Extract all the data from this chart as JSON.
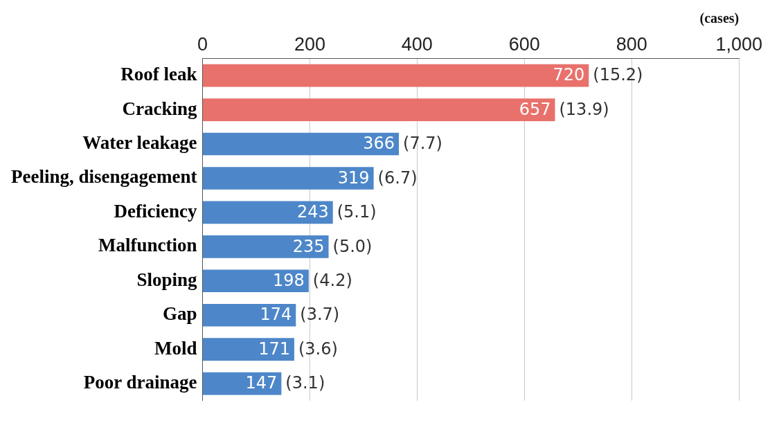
{
  "chart_data": {
    "type": "bar",
    "orientation": "horizontal",
    "xlabel": "(cases)",
    "categories": [
      "Roof leak",
      "Cracking",
      "Water leakage",
      "Peeling, disengagement",
      "Deficiency",
      "Malfunction",
      "Sloping",
      "Gap",
      "Mold",
      "Poor drainage"
    ],
    "values": [
      720,
      657,
      366,
      319,
      243,
      235,
      198,
      174,
      171,
      147
    ],
    "colors": [
      "#e8716b",
      "#e8716b",
      "#4d87c9",
      "#4d87c9",
      "#4d87c9",
      "#4d87c9",
      "#4d87c9",
      "#4d87c9",
      "#4d87c9",
      "#4d87c9"
    ],
    "xlim": [
      0,
      1000
    ],
    "xticks": [
      0,
      200,
      400,
      600,
      800,
      {
        "value": 1000,
        "label": "1,000"
      }
    ],
    "grid": "x",
    "data_labels": true,
    "annotations": [
      {
        "text": "(15.2)",
        "x": 720,
        "y": "Roof leak"
      },
      {
        "text": "(13.9)",
        "x": 657,
        "y": "Cracking"
      },
      {
        "text": "(7.7)",
        "x": 366,
        "y": "Water leakage"
      },
      {
        "text": "(6.7)",
        "x": 319,
        "y": "Peeling, disengagement"
      },
      {
        "text": "(5.1)",
        "x": 243,
        "y": "Deficiency"
      },
      {
        "text": "(5.0)",
        "x": 235,
        "y": "Malfunction"
      },
      {
        "text": "(4.2)",
        "x": 198,
        "y": "Sloping"
      },
      {
        "text": "(3.7)",
        "x": 174,
        "y": "Gap"
      },
      {
        "text": "(3.6)",
        "x": 171,
        "y": "Mold"
      },
      {
        "text": "(3.1)",
        "x": 147,
        "y": "Poor drainage"
      }
    ]
  }
}
